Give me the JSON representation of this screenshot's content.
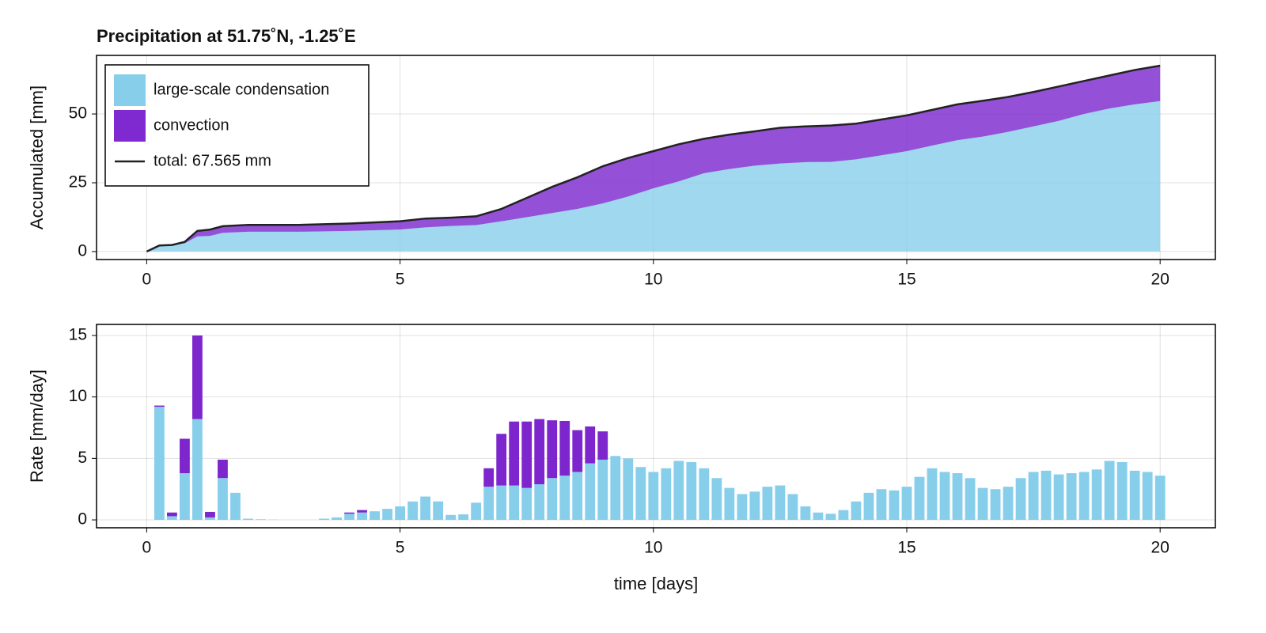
{
  "chart_data": [
    {
      "type": "area",
      "title": "Precipitation at 51.75˚N, -1.25˚E",
      "ylabel": "Accumulated [mm]",
      "x": [
        0,
        0.25,
        0.5,
        0.75,
        1,
        1.25,
        1.5,
        2,
        3,
        4,
        5,
        5.5,
        6,
        6.5,
        7,
        7.5,
        8,
        8.5,
        9,
        9.5,
        10,
        10.5,
        11,
        11.5,
        12,
        12.5,
        13,
        13.5,
        14,
        14.5,
        15,
        15.5,
        16,
        16.5,
        17,
        17.5,
        18,
        18.5,
        19,
        19.5,
        20
      ],
      "series": [
        {
          "name": "large-scale condensation",
          "color": "#87ceeb",
          "values": [
            0,
            2.2,
            2.3,
            3.0,
            5.5,
            5.7,
            6.8,
            7.2,
            7.2,
            7.5,
            8.0,
            8.8,
            9.3,
            9.6,
            11,
            12.5,
            14,
            15.5,
            17.5,
            20,
            23,
            25.5,
            28.5,
            30,
            31.2,
            32,
            32.5,
            32.6,
            33.5,
            35,
            36.5,
            38.5,
            40.5,
            41.8,
            43.5,
            45.5,
            47.5,
            50,
            52,
            53.5,
            54.7
          ]
        },
        {
          "name": "convection",
          "color": "#7e2ad0",
          "values": [
            0,
            0,
            0.1,
            0.5,
            2.0,
            2.3,
            2.4,
            2.5,
            2.5,
            2.7,
            3.0,
            3.2,
            3.0,
            3.2,
            4.5,
            7.0,
            9.5,
            11.5,
            13.5,
            14,
            13.5,
            13.5,
            12.5,
            12.5,
            12.5,
            13,
            13,
            13.2,
            13,
            13,
            13,
            13,
            13,
            13,
            12.7,
            12.5,
            12.5,
            12,
            12,
            12.5,
            12.865
          ]
        },
        {
          "name": "total: 67.565 mm",
          "color": "#222222",
          "line": true,
          "values": [
            0,
            2.2,
            2.4,
            3.5,
            7.5,
            8.0,
            9.2,
            9.7,
            9.7,
            10.2,
            11.0,
            12.0,
            12.3,
            12.8,
            15.5,
            19.5,
            23.5,
            27,
            31,
            34,
            36.5,
            39,
            41,
            42.5,
            43.7,
            45,
            45.5,
            45.8,
            46.5,
            48,
            49.5,
            51.5,
            53.5,
            54.8,
            56.2,
            58,
            60,
            62,
            64,
            66,
            67.565
          ]
        }
      ],
      "xlim": [
        -0.99,
        21.09
      ],
      "xticks": [
        0,
        5,
        10,
        15,
        20
      ],
      "ylim": [
        -2.9,
        71.3
      ],
      "yticks": [
        0,
        25,
        50
      ],
      "grid": true,
      "legend": "top-left"
    },
    {
      "type": "bar",
      "xlabel": "time [days]",
      "ylabel": "Rate [mm/day]",
      "x": [
        0.25,
        0.5,
        0.75,
        1,
        1.25,
        1.5,
        1.75,
        2,
        2.25,
        2.5,
        2.75,
        3,
        3.25,
        3.5,
        3.75,
        4,
        4.25,
        4.5,
        4.75,
        5,
        5.25,
        5.5,
        5.75,
        6,
        6.25,
        6.5,
        6.75,
        7,
        7.25,
        7.5,
        7.75,
        8,
        8.25,
        8.5,
        8.75,
        9,
        9.25,
        9.5,
        9.75,
        10,
        10.25,
        10.5,
        10.75,
        11,
        11.25,
        11.5,
        11.75,
        12,
        12.25,
        12.5,
        12.75,
        13,
        13.25,
        13.5,
        13.75,
        14,
        14.25,
        14.5,
        14.75,
        15,
        15.25,
        15.5,
        15.75,
        16,
        16.25,
        16.5,
        16.75,
        17,
        17.25,
        17.5,
        17.75,
        18,
        18.25,
        18.5,
        18.75,
        19,
        19.25,
        19.5,
        19.75,
        20
      ],
      "series": [
        {
          "name": "large-scale condensation",
          "color": "#87ceeb",
          "values": [
            9.2,
            0.3,
            3.8,
            8.2,
            0.2,
            3.4,
            2.2,
            0.1,
            0.05,
            0.02,
            0,
            0,
            0,
            0.1,
            0.2,
            0.5,
            0.6,
            0.7,
            0.9,
            1.1,
            1.5,
            1.9,
            1.5,
            0.4,
            0.45,
            1.4,
            2.7,
            2.8,
            2.8,
            2.6,
            2.9,
            3.4,
            3.6,
            3.9,
            4.6,
            4.9,
            5.2,
            5.0,
            4.3,
            3.9,
            4.2,
            4.8,
            4.7,
            4.2,
            3.4,
            2.6,
            2.1,
            2.3,
            2.7,
            2.8,
            2.1,
            1.1,
            0.6,
            0.5,
            0.8,
            1.5,
            2.2,
            2.5,
            2.4,
            2.7,
            3.5,
            4.2,
            3.9,
            3.8,
            3.4,
            2.6,
            2.5,
            2.7,
            3.4,
            3.9,
            4.0,
            3.7,
            3.8,
            3.9,
            4.1,
            4.8,
            4.7,
            4.0,
            3.9,
            3.6
          ]
        },
        {
          "name": "convection",
          "color": "#7d26cd",
          "values": [
            0.1,
            0.3,
            2.8,
            6.8,
            0.45,
            1.5,
            0,
            0,
            0,
            0,
            0,
            0,
            0,
            0,
            0,
            0.1,
            0.2,
            0,
            0,
            0,
            0,
            0,
            0,
            0,
            0,
            0,
            1.5,
            4.2,
            5.2,
            5.4,
            5.3,
            4.7,
            4.45,
            3.4,
            3.0,
            2.3,
            0,
            0,
            0,
            0,
            0,
            0,
            0,
            0,
            0,
            0,
            0,
            0,
            0,
            0,
            0,
            0,
            0,
            0,
            0,
            0,
            0,
            0,
            0,
            0,
            0,
            0,
            0,
            0,
            0,
            0,
            0,
            0,
            0,
            0,
            0,
            0,
            0,
            0,
            0,
            0,
            0,
            0,
            0,
            0
          ]
        }
      ],
      "xlim": [
        -0.99,
        21.09
      ],
      "xticks": [
        0,
        5,
        10,
        15,
        20
      ],
      "ylim": [
        -0.64,
        15.9
      ],
      "yticks": [
        0,
        5,
        10,
        15
      ],
      "grid": true
    }
  ]
}
